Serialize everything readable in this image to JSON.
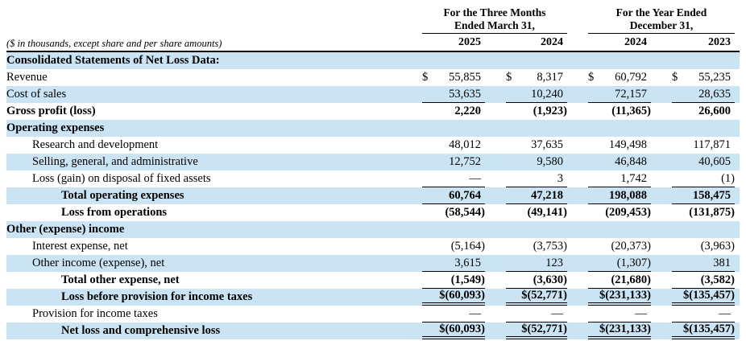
{
  "page": {
    "background": "#ffffff",
    "stripe_color": "#cbe4f4",
    "text_color": "#000000"
  },
  "currency_symbol": "$",
  "header": {
    "note": "($ in thousands, except share and per share amounts)",
    "groups": [
      {
        "line1": "For the Three Months",
        "line2": "Ended March 31,"
      },
      {
        "line1": "For the Year Ended",
        "line2": "December 31,"
      }
    ],
    "years": [
      "2025",
      "2024",
      "2024",
      "2023"
    ]
  },
  "rows": [
    {
      "label": "Consolidated Statements of Net Loss Data:",
      "bold": true,
      "indent": 0,
      "shade": true,
      "dollar": false,
      "rule": "none",
      "values": [
        "",
        "",
        "",
        ""
      ]
    },
    {
      "label": "Revenue",
      "bold": false,
      "indent": 0,
      "shade": false,
      "dollar": true,
      "rule": "none",
      "values": [
        "55,855",
        "8,317",
        "60,792",
        "55,235"
      ]
    },
    {
      "label": "Cost of sales",
      "bold": false,
      "indent": 0,
      "shade": true,
      "dollar": false,
      "rule": "single",
      "values": [
        "53,635",
        "10,240",
        "72,157",
        "28,635"
      ]
    },
    {
      "label": "Gross profit (loss)",
      "bold": true,
      "indent": 0,
      "shade": false,
      "dollar": false,
      "rule": "none",
      "values": [
        "2,220",
        "(1,923)",
        "(11,365)",
        "26,600"
      ]
    },
    {
      "label": "Operating expenses",
      "bold": true,
      "indent": 0,
      "shade": true,
      "dollar": false,
      "rule": "none",
      "values": [
        "",
        "",
        "",
        ""
      ]
    },
    {
      "label": "Research and development",
      "bold": false,
      "indent": 1,
      "shade": false,
      "dollar": false,
      "rule": "none",
      "values": [
        "48,012",
        "37,635",
        "149,498",
        "117,871"
      ]
    },
    {
      "label": "Selling, general, and administrative",
      "bold": false,
      "indent": 1,
      "shade": true,
      "dollar": false,
      "rule": "none",
      "values": [
        "12,752",
        "9,580",
        "46,848",
        "40,605"
      ]
    },
    {
      "label": "Loss (gain) on disposal of fixed assets",
      "bold": false,
      "indent": 1,
      "shade": false,
      "dollar": false,
      "rule": "single",
      "values": [
        "—",
        "3",
        "1,742",
        "(1)"
      ]
    },
    {
      "label": "Total operating expenses",
      "bold": true,
      "indent": 2,
      "shade": true,
      "dollar": false,
      "rule": "single",
      "values": [
        "60,764",
        "47,218",
        "198,088",
        "158,475"
      ]
    },
    {
      "label": "Loss from operations",
      "bold": true,
      "indent": 2,
      "shade": false,
      "dollar": false,
      "rule": "none",
      "values": [
        "(58,544)",
        "(49,141)",
        "(209,453)",
        "(131,875)"
      ]
    },
    {
      "label": "Other (expense) income",
      "bold": true,
      "indent": 0,
      "shade": true,
      "dollar": false,
      "rule": "none",
      "values": [
        "",
        "",
        "",
        ""
      ]
    },
    {
      "label": "Interest expense, net",
      "bold": false,
      "indent": 1,
      "shade": false,
      "dollar": false,
      "rule": "none",
      "values": [
        "(5,164)",
        "(3,753)",
        "(20,373)",
        "(3,963)"
      ]
    },
    {
      "label": "Other income (expense), net",
      "bold": false,
      "indent": 1,
      "shade": true,
      "dollar": false,
      "rule": "single",
      "values": [
        "3,615",
        "123",
        "(1,307)",
        "381"
      ]
    },
    {
      "label": "Total other expense, net",
      "bold": true,
      "indent": 2,
      "shade": false,
      "dollar": false,
      "rule": "single",
      "values": [
        "(1,549)",
        "(3,630)",
        "(21,680)",
        "(3,582)"
      ]
    },
    {
      "label": "Loss before provision for income taxes",
      "bold": true,
      "indent": 2,
      "shade": true,
      "dollar": false,
      "rule": "double",
      "values": [
        "$(60,093)",
        "$(52,771)",
        "$(231,133)",
        "$(135,457)"
      ]
    },
    {
      "label": "Provision for income taxes",
      "bold": false,
      "indent": 1,
      "shade": false,
      "dollar": false,
      "rule": "single",
      "values": [
        "—",
        "—",
        "—",
        "—"
      ]
    },
    {
      "label": "Net loss and comprehensive loss",
      "bold": true,
      "indent": 2,
      "shade": true,
      "dollar": false,
      "rule": "double",
      "values": [
        "$(60,093)",
        "$(52,771)",
        "$(231,133)",
        "$(135,457)"
      ]
    }
  ]
}
